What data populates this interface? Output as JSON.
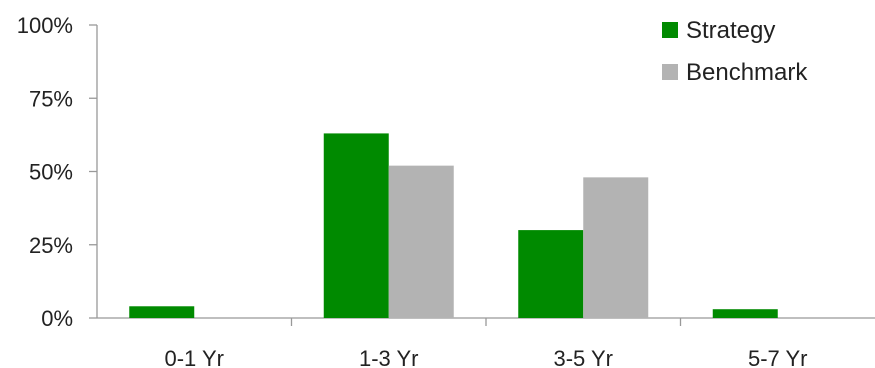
{
  "chart_data": {
    "type": "bar",
    "categories": [
      "0-1 Yr",
      "1-3 Yr",
      "3-5 Yr",
      "5-7 Yr"
    ],
    "series": [
      {
        "name": "Strategy",
        "values": [
          4,
          63,
          30,
          3
        ],
        "color": "#008a00"
      },
      {
        "name": "Benchmark",
        "values": [
          0,
          52,
          48,
          0
        ],
        "color": "#b3b3b3"
      }
    ],
    "ylim": [
      0,
      100
    ],
    "yticks": [
      0,
      25,
      50,
      75,
      100
    ],
    "ytick_labels": [
      "0%",
      "25%",
      "50%",
      "75%",
      "100%"
    ],
    "xlabel": "",
    "ylabel": "",
    "title": "",
    "legend_position": "top-right",
    "grid": false,
    "axis_color": "#999999"
  }
}
